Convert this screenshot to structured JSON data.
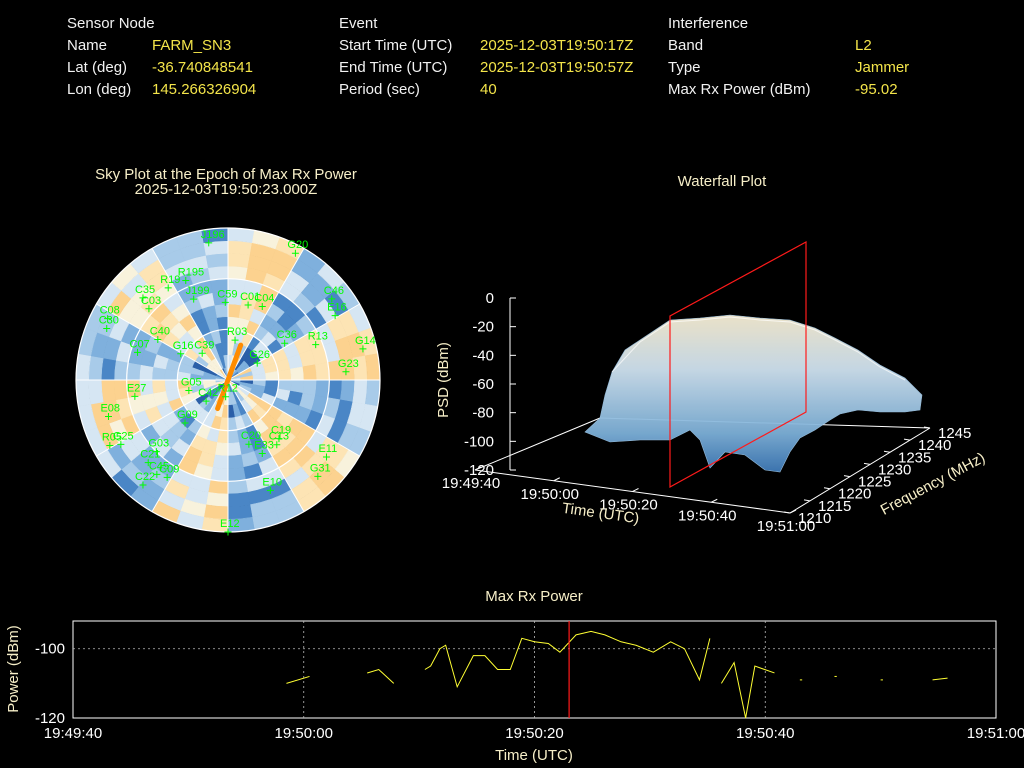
{
  "info": {
    "sensor": {
      "heading": "Sensor Node",
      "name_label": "Name",
      "name": "FARM_SN3",
      "lat_label": "Lat (deg)",
      "lat": "-36.740848541",
      "lon_label": "Lon (deg)",
      "lon": "145.266326904"
    },
    "event": {
      "heading": "Event",
      "start_label": "Start Time (UTC)",
      "start": "2025-12-03T19:50:17Z",
      "end_label": "End Time (UTC)",
      "end": "2025-12-03T19:50:57Z",
      "period_label": "Period (sec)",
      "period": "40"
    },
    "interference": {
      "heading": "Interference",
      "band_label": "Band",
      "band": "L2",
      "type_label": "Type",
      "type": "Jammer",
      "power_label": "Max Rx Power (dBm)",
      "power": "-95.02"
    }
  },
  "colors": {
    "label": "#f2f2f2",
    "value": "#f4e54a",
    "sat": "#00ff00",
    "marker": "#ff1a1a",
    "trace": "#ffff33",
    "jam": "#ff8c00"
  },
  "chart_data": [
    {
      "type": "polar-heatmap",
      "title": "Sky Plot at the Epoch of Max Rx Power",
      "subtitle": "2025-12-03T19:50:23.000Z",
      "satellites": [
        {
          "id": "J196",
          "az": 352,
          "el": 8
        },
        {
          "id": "G20",
          "az": 28,
          "el": 5
        },
        {
          "id": "C46",
          "az": 52,
          "el": 12
        },
        {
          "id": "E16",
          "az": 59,
          "el": 16
        },
        {
          "id": "G14",
          "az": 77,
          "el": 8
        },
        {
          "id": "G23",
          "az": 86,
          "el": 20
        },
        {
          "id": "R13",
          "az": 68,
          "el": 34
        },
        {
          "id": "C36",
          "az": 57,
          "el": 50
        },
        {
          "id": "C04",
          "az": 25,
          "el": 42
        },
        {
          "id": "C01",
          "az": 15,
          "el": 44
        },
        {
          "id": "C59",
          "az": 358,
          "el": 44
        },
        {
          "id": "R195",
          "az": 337,
          "el": 26
        },
        {
          "id": "R19",
          "az": 327,
          "el": 25
        },
        {
          "id": "C35",
          "az": 314,
          "el": 20
        },
        {
          "id": "C03",
          "az": 312,
          "el": 27
        },
        {
          "id": "J199",
          "az": 337,
          "el": 38
        },
        {
          "id": "C08",
          "az": 297,
          "el": 10
        },
        {
          "id": "C30",
          "az": 293,
          "el": 12
        },
        {
          "id": "C40",
          "az": 300,
          "el": 42
        },
        {
          "id": "C07",
          "az": 287,
          "el": 34
        },
        {
          "id": "G16",
          "az": 299,
          "el": 58
        },
        {
          "id": "C39",
          "az": 316,
          "el": 68
        },
        {
          "id": "R03",
          "az": 10,
          "el": 66
        },
        {
          "id": "G26",
          "az": 60,
          "el": 70
        },
        {
          "id": "E27",
          "az": 260,
          "el": 34
        },
        {
          "id": "G05",
          "az": 255,
          "el": 66
        },
        {
          "id": "C42",
          "az": 226,
          "el": 72
        },
        {
          "id": "E08",
          "az": 253,
          "el": 16
        },
        {
          "id": "G09",
          "az": 225,
          "el": 54
        },
        {
          "id": "G03",
          "az": 225,
          "el": 30
        },
        {
          "id": "R05",
          "az": 241,
          "el": 10
        },
        {
          "id": "G25",
          "az": 239,
          "el": 16
        },
        {
          "id": "C21",
          "az": 224,
          "el": 22
        },
        {
          "id": "C45",
          "az": 217,
          "el": 20
        },
        {
          "id": "C09",
          "az": 212,
          "el": 22
        },
        {
          "id": "C22",
          "az": 219,
          "el": 10
        },
        {
          "id": "R12",
          "az": 188,
          "el": 80
        },
        {
          "id": "C19",
          "az": 139,
          "el": 44
        },
        {
          "id": "C13",
          "az": 143,
          "el": 42
        },
        {
          "id": "C20",
          "az": 162,
          "el": 50
        },
        {
          "id": "E11",
          "az": 128,
          "el": 16
        },
        {
          "id": "G31",
          "az": 137,
          "el": 12
        },
        {
          "id": "E10",
          "az": 159,
          "el": 20
        },
        {
          "id": "E12",
          "az": 180,
          "el": 0
        },
        {
          "id": "E33",
          "az": 155,
          "el": 42
        }
      ],
      "jam_direction": {
        "az_start": 200,
        "el_start": 72,
        "az_end": 20,
        "el_end": 68
      }
    },
    {
      "type": "surface",
      "title": "Waterfall Plot",
      "zlabel": "PSD (dBm)",
      "zlim": [
        -120,
        0
      ],
      "zticks": [
        "0",
        "-20",
        "-40",
        "-60",
        "-80",
        "-100",
        "-120"
      ],
      "xlabel": "Time (UTC)",
      "xticks": [
        "19:49:40",
        "19:50:00",
        "19:50:20",
        "19:50:40",
        "19:51:00"
      ],
      "ylabel": "Frequency (MHz)",
      "yticks": [
        "1210",
        "1215",
        "1220",
        "1225",
        "1230",
        "1235",
        "1240",
        "1245"
      ],
      "marker_time": "19:50:23"
    },
    {
      "type": "line",
      "title": "Max Rx Power",
      "xlabel": "Time (UTC)",
      "ylabel": "Power (dBm)",
      "xticks": [
        "19:49:40",
        "19:50:00",
        "19:50:20",
        "19:50:40",
        "19:51:00"
      ],
      "xlim_sec": [
        0,
        80
      ],
      "ylim": [
        -120,
        -92
      ],
      "yticks": [
        -100,
        -120
      ],
      "marker_sec": 43,
      "segments": [
        [
          [
            18.5,
            -110
          ],
          [
            20.5,
            -108
          ]
        ],
        [
          [
            25.5,
            -107
          ],
          [
            26.5,
            -106
          ],
          [
            27.8,
            -110
          ]
        ],
        [
          [
            30.5,
            -106
          ],
          [
            31,
            -105
          ],
          [
            31.8,
            -100
          ],
          [
            32.3,
            -99
          ],
          [
            33.3,
            -111
          ],
          [
            34.7,
            -102
          ],
          [
            35.7,
            -102
          ],
          [
            36.8,
            -106
          ],
          [
            37.9,
            -106
          ],
          [
            38.9,
            -97
          ],
          [
            40,
            -98
          ],
          [
            41.2,
            -98.5
          ],
          [
            42.2,
            -101
          ],
          [
            43.6,
            -96
          ],
          [
            44.9,
            -95
          ],
          [
            46.1,
            -96
          ],
          [
            47.5,
            -98
          ],
          [
            48.8,
            -99
          ],
          [
            50.3,
            -101
          ],
          [
            51.8,
            -98
          ],
          [
            53,
            -100
          ],
          [
            54.3,
            -109
          ],
          [
            55.2,
            -97
          ]
        ],
        [
          [
            56.2,
            -110
          ],
          [
            57.3,
            -104
          ],
          [
            58.3,
            -120
          ],
          [
            59.1,
            -105
          ],
          [
            60.8,
            -107
          ]
        ],
        [
          [
            63,
            -109
          ],
          [
            63.2,
            -109
          ]
        ],
        [
          [
            66,
            -108
          ],
          [
            66.2,
            -108
          ]
        ],
        [
          [
            70,
            -109
          ],
          [
            70.2,
            -109
          ]
        ],
        [
          [
            74.5,
            -109
          ],
          [
            75.8,
            -108.5
          ]
        ]
      ]
    }
  ]
}
